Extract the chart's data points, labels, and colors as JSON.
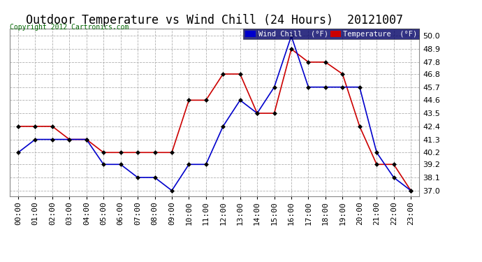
{
  "title": "Outdoor Temperature vs Wind Chill (24 Hours)  20121007",
  "copyright": "Copyright 2012 Cartronics.com",
  "background_color": "#ffffff",
  "plot_bg_color": "#ffffff",
  "grid_color": "#b0b0b0",
  "hours": [
    "00:00",
    "01:00",
    "02:00",
    "03:00",
    "04:00",
    "05:00",
    "06:00",
    "07:00",
    "08:00",
    "09:00",
    "10:00",
    "11:00",
    "12:00",
    "13:00",
    "14:00",
    "15:00",
    "16:00",
    "17:00",
    "18:00",
    "19:00",
    "20:00",
    "21:00",
    "22:00",
    "23:00"
  ],
  "temperature": [
    42.4,
    42.4,
    42.4,
    41.3,
    41.3,
    40.2,
    40.2,
    40.2,
    40.2,
    40.2,
    44.6,
    44.6,
    46.8,
    46.8,
    43.5,
    43.5,
    48.9,
    47.8,
    47.8,
    46.8,
    42.4,
    39.2,
    39.2,
    37.0
  ],
  "wind_chill": [
    40.2,
    41.3,
    41.3,
    41.3,
    41.3,
    39.2,
    39.2,
    38.1,
    38.1,
    37.0,
    39.2,
    39.2,
    42.4,
    44.6,
    43.5,
    45.7,
    50.0,
    45.7,
    45.7,
    45.7,
    45.7,
    40.2,
    38.1,
    37.0
  ],
  "temp_color": "#cc0000",
  "wind_color": "#0000cc",
  "ylim_min": 36.5,
  "ylim_max": 50.6,
  "yticks": [
    37.0,
    38.1,
    39.2,
    40.2,
    41.3,
    42.4,
    43.5,
    44.6,
    45.7,
    46.8,
    47.8,
    48.9,
    50.0
  ],
  "legend_wind_label": "Wind Chill  (°F)",
  "legend_temp_label": "Temperature  (°F)",
  "marker": "D",
  "marker_size": 3,
  "marker_color": "#000000",
  "line_width": 1.2,
  "title_fontsize": 12,
  "tick_fontsize": 8,
  "copyright_fontsize": 7,
  "legend_fontsize": 7.5,
  "wind_legend_bg": "#0000cc",
  "temp_legend_bg": "#cc0000",
  "legend_text_color": "#ffffff"
}
